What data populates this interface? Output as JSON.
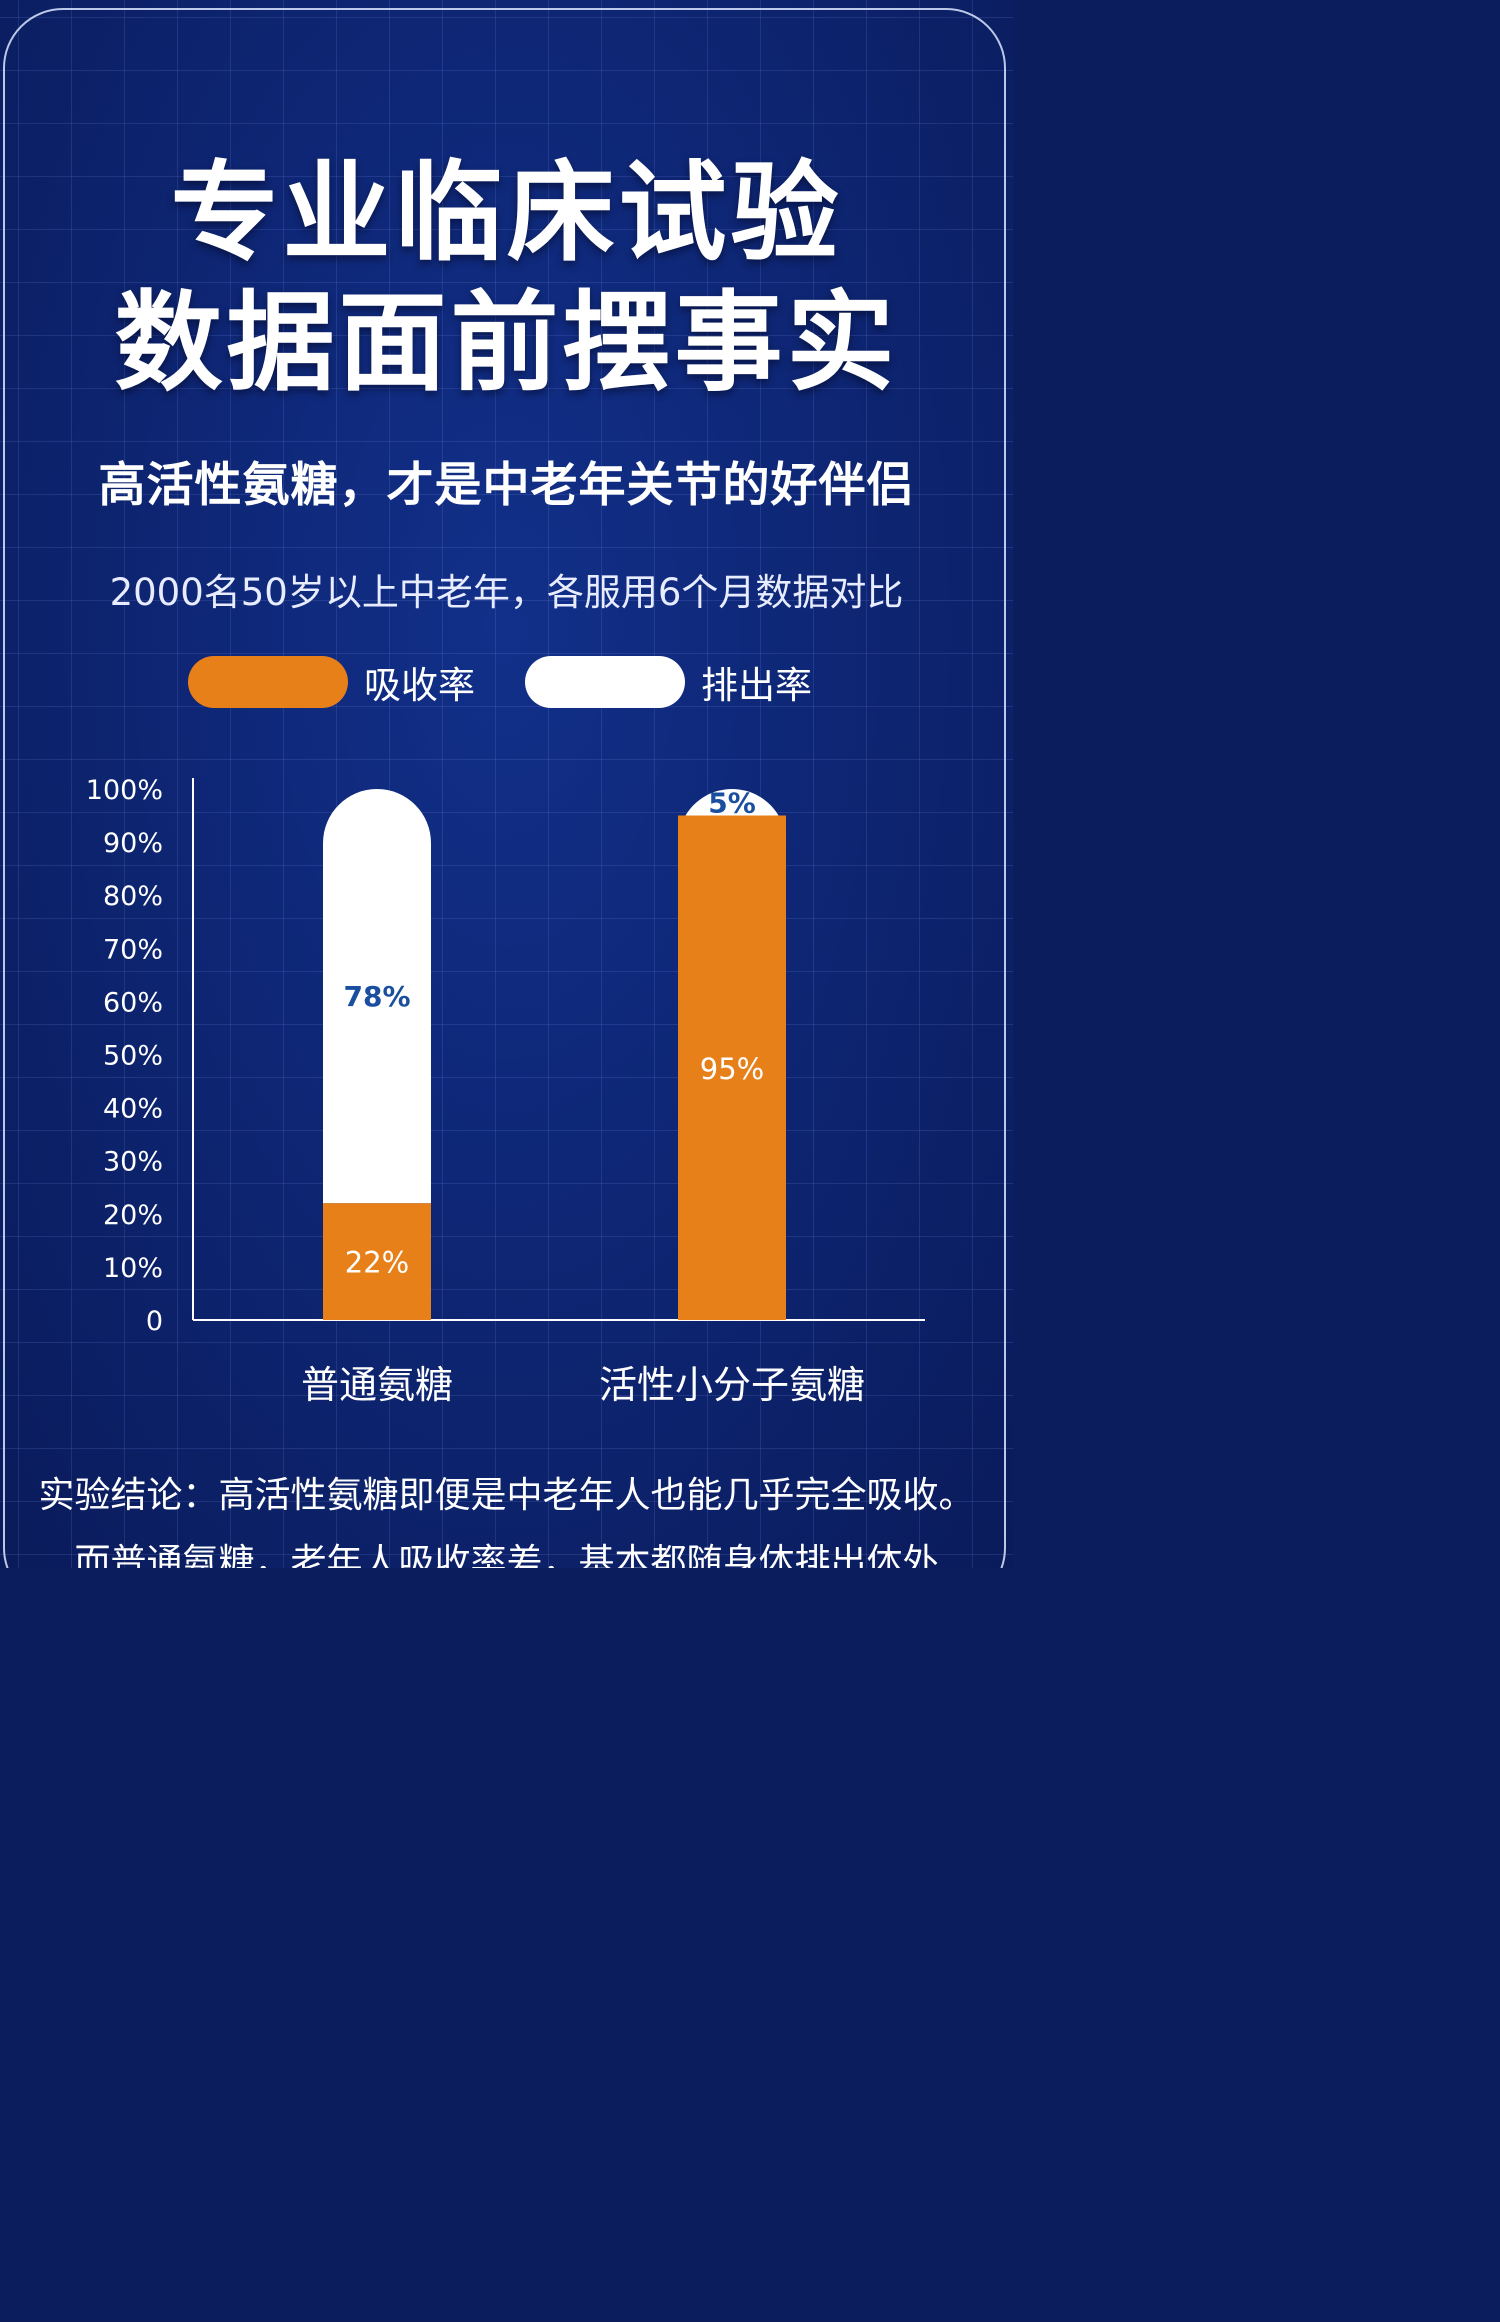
{
  "title_line1": "专业临床试验",
  "title_line2": "数据面前摆事实",
  "subtitle": "高活性氨糖，才是中老年关节的好伴侣",
  "caption": "2000名50岁以上中老年，各服用6个月数据对比",
  "legend": [
    {
      "label": "吸收率",
      "color": "#e8801a"
    },
    {
      "label": "排出率",
      "color": "#ffffff"
    }
  ],
  "chart_data": {
    "type": "bar",
    "stacked": true,
    "categories": [
      "普通氨糖",
      "活性小分子氨糖"
    ],
    "series": [
      {
        "name": "吸收率",
        "values": [
          22,
          95
        ],
        "labels": [
          "22%",
          "95%"
        ],
        "color": "#e8801a"
      },
      {
        "name": "排出率",
        "values": [
          78,
          5
        ],
        "labels": [
          "78%",
          "5%"
        ],
        "color": "#ffffff"
      }
    ],
    "yticks": [
      "0",
      "10%",
      "20%",
      "30%",
      "40%",
      "50%",
      "60%",
      "70%",
      "80%",
      "90%",
      "100%"
    ],
    "ylim": [
      0,
      100
    ],
    "label_colors": {
      "on_orange": "#ffffff",
      "on_white": "#1a4fa0"
    }
  },
  "conclusion_line1": "实验结论：高活性氨糖即便是中老年人也能几乎完全吸收。",
  "conclusion_line2": "而普通氨糖，老年人吸收率差，基本都随身体排出体外"
}
